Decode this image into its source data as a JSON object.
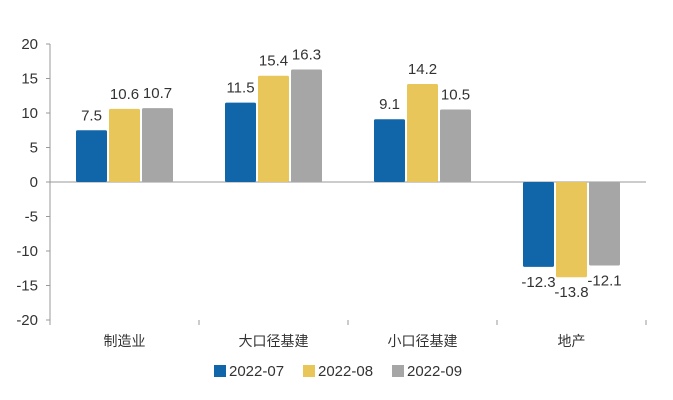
{
  "chart_data": {
    "type": "bar",
    "title": "",
    "xlabel": "",
    "ylabel": "",
    "ylim": [
      -20,
      20
    ],
    "yticks": [
      20,
      15,
      10,
      5,
      0,
      -5,
      -10,
      -15,
      -20
    ],
    "categories": [
      "制造业",
      "大口径基建",
      "小口径基建",
      "地产"
    ],
    "series": [
      {
        "name": "2022-07",
        "color": "#1166AA",
        "values": [
          7.5,
          11.5,
          9.1,
          -12.3
        ]
      },
      {
        "name": "2022-08",
        "color": "#E8C65A",
        "values": [
          10.6,
          15.4,
          14.2,
          -13.8
        ]
      },
      {
        "name": "2022-09",
        "color": "#A6A6A6",
        "values": [
          10.7,
          16.3,
          10.5,
          -12.1
        ]
      }
    ],
    "legend_position": "bottom",
    "grid": false
  }
}
